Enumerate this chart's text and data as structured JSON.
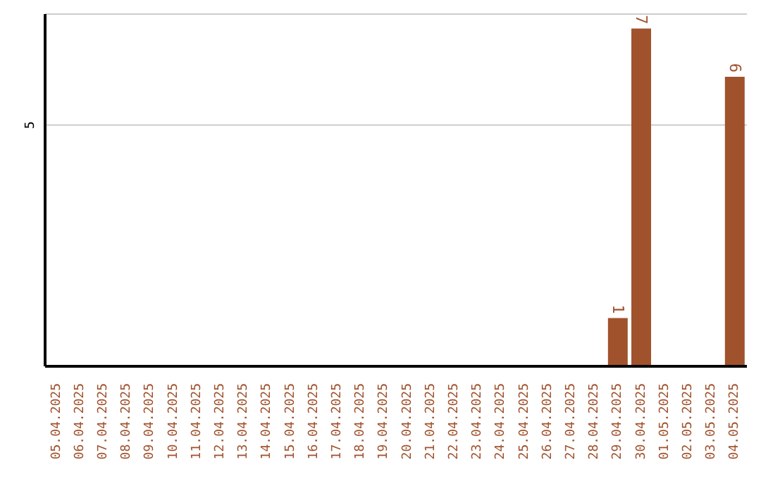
{
  "chart_data": {
    "type": "bar",
    "categories": [
      "05.04.2025",
      "06.04.2025",
      "07.04.2025",
      "08.04.2025",
      "09.04.2025",
      "10.04.2025",
      "11.04.2025",
      "12.04.2025",
      "13.04.2025",
      "14.04.2025",
      "15.04.2025",
      "16.04.2025",
      "17.04.2025",
      "18.04.2025",
      "19.04.2025",
      "20.04.2025",
      "21.04.2025",
      "22.04.2025",
      "23.04.2025",
      "24.04.2025",
      "25.04.2025",
      "26.04.2025",
      "27.04.2025",
      "28.04.2025",
      "29.04.2025",
      "30.04.2025",
      "01.05.2025",
      "02.05.2025",
      "03.05.2025",
      "04.05.2025"
    ],
    "values": [
      null,
      null,
      null,
      null,
      null,
      null,
      null,
      null,
      null,
      null,
      null,
      null,
      null,
      null,
      null,
      null,
      null,
      null,
      null,
      null,
      null,
      null,
      null,
      null,
      1,
      7,
      null,
      null,
      null,
      6
    ],
    "color": "#a0522d",
    "ylim": [
      0,
      7.3
    ],
    "yticks": [
      5
    ],
    "grid": "y",
    "data_labels": true
  }
}
